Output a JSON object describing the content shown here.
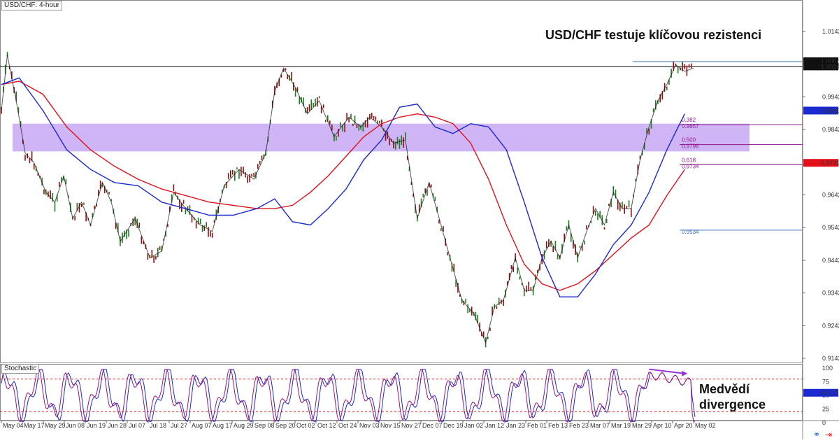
{
  "chart": {
    "instrument_label": "USD/CHF: 4-hour",
    "headline": "USD/CHF testuje klíčovou rezistenci",
    "oscillator_label": "Stochastic",
    "divergence_note": [
      "Medvědí",
      "divergence"
    ]
  },
  "chart_data": [
    {
      "type": "line",
      "title": "USD/CHF testuje klíčovou rezistenci",
      "instrument": "USD/CHF: 4-hour",
      "ylim": [
        0.9142,
        1.0142
      ],
      "y_ticks": [
        "1.0142",
        "0.9942",
        "0.9842",
        "0.9642",
        "0.9542",
        "0.9442",
        "0.9342",
        "0.9242",
        "0.9142"
      ],
      "x_ticks": [
        "May 04",
        "May 17",
        "May 29",
        "Jun 08",
        "Jun 19",
        "Jun 28",
        "Jul 07",
        "Jul 18",
        "Jul 27",
        "Aug 07",
        "Aug 17",
        "Aug 29",
        "Sep 08",
        "Sep 20",
        "Oct 02",
        "Oct 12",
        "Oct 24",
        "Nov 03",
        "Nov 15",
        "Nov 27",
        "Dec 07",
        "Dec 19",
        "Jan 02",
        "Jan 12",
        "Jan 23",
        "Feb 01",
        "Feb 13",
        "Feb 23",
        "Mar 07",
        "Mar 19",
        "Mar 29",
        "Apr 10",
        "Apr 20",
        "May 02"
      ],
      "price_series_x": [
        0,
        2,
        5,
        8,
        11,
        15,
        18,
        21,
        24,
        27,
        30,
        34,
        37,
        40,
        45,
        50,
        54,
        58,
        62,
        67,
        71,
        75,
        80,
        85,
        89,
        92,
        95,
        99,
        103,
        107,
        112,
        117,
        121,
        124,
        128,
        132,
        136,
        140,
        144,
        148,
        151,
        155,
        159,
        163,
        166,
        169,
        173,
        176,
        179,
        182,
        185,
        188,
        191,
        194,
        197,
        200,
        203,
        206,
        209,
        212,
        215,
        218,
        221,
        224,
        227,
        230,
        233
      ],
      "price_series_y": [
        0.99,
        1.007,
        0.993,
        0.977,
        0.974,
        0.965,
        0.962,
        0.97,
        0.957,
        0.962,
        0.955,
        0.968,
        0.962,
        0.95,
        0.957,
        0.945,
        0.947,
        0.965,
        0.96,
        0.955,
        0.953,
        0.967,
        0.972,
        0.969,
        0.977,
        0.996,
        1.003,
        0.997,
        0.989,
        0.993,
        0.982,
        0.988,
        0.985,
        0.988,
        0.985,
        0.98,
        0.981,
        0.957,
        0.968,
        0.955,
        0.945,
        0.932,
        0.928,
        0.919,
        0.93,
        0.932,
        0.945,
        0.935,
        0.935,
        0.945,
        0.95,
        0.945,
        0.955,
        0.945,
        0.953,
        0.96,
        0.955,
        0.965,
        0.96,
        0.96,
        0.975,
        0.985,
        0.993,
        0.998,
        1.004,
        1.002,
        1.003
      ],
      "ma_fast": [
        0.998,
        1.0,
        0.99,
        0.978,
        0.972,
        0.968,
        0.967,
        0.962,
        0.96,
        0.958,
        0.958,
        0.96,
        0.963,
        0.956,
        0.955,
        0.96,
        0.966,
        0.975,
        0.981,
        0.991,
        0.992,
        0.985,
        0.983,
        0.986,
        0.985,
        0.978,
        0.962,
        0.945,
        0.933,
        0.933,
        0.94,
        0.949,
        0.955,
        0.965,
        0.978,
        0.989
      ],
      "ma_fast_x": [
        0,
        6,
        14,
        22,
        30,
        38,
        46,
        54,
        62,
        70,
        78,
        86,
        92,
        98,
        104,
        110,
        116,
        122,
        128,
        134,
        140,
        146,
        152,
        158,
        164,
        170,
        176,
        182,
        188,
        194,
        200,
        206,
        212,
        218,
        224,
        230
      ],
      "ma_slow": [
        0.998,
        0.999,
        0.995,
        0.985,
        0.978,
        0.973,
        0.969,
        0.966,
        0.964,
        0.962,
        0.961,
        0.96,
        0.96,
        0.961,
        0.965,
        0.97,
        0.976,
        0.982,
        0.986,
        0.988,
        0.989,
        0.988,
        0.986,
        0.98,
        0.969,
        0.955,
        0.943,
        0.937,
        0.935,
        0.937,
        0.941,
        0.946,
        0.951,
        0.955,
        0.964,
        0.972
      ],
      "ma_slow_x": [
        0,
        6,
        14,
        22,
        30,
        38,
        46,
        54,
        62,
        70,
        78,
        86,
        92,
        98,
        104,
        110,
        116,
        122,
        128,
        134,
        140,
        146,
        152,
        158,
        164,
        170,
        176,
        182,
        188,
        194,
        200,
        206,
        212,
        218,
        224,
        230
      ],
      "current_price": "1.0034",
      "price_markers": [
        {
          "label": "1.0050",
          "value": 1.005,
          "color": "#111111"
        },
        {
          "label": "1.0034",
          "value": 1.0034,
          "color": "#111111"
        },
        {
          "label": "0.9899",
          "value": 0.9899,
          "color": "#1a2ad0"
        },
        {
          "label": "0.9739",
          "value": 0.9739,
          "color": "#e3101a"
        }
      ],
      "fib_levels": [
        {
          "ratio": "0.382",
          "price": "0.9857",
          "value": 0.9857,
          "color": "#8b1a8b"
        },
        {
          "ratio": "0.500",
          "price": "0.9796",
          "value": 0.9796,
          "color": "#8b1a8b"
        },
        {
          "ratio": "0.618",
          "price": "0.9734",
          "value": 0.9734,
          "color": "#8b1a8b"
        },
        {
          "ratio": "",
          "price": "0.9534",
          "value": 0.9534,
          "color": "#3a6fb0"
        }
      ],
      "resistance_zone": [
        0.9775,
        0.986
      ],
      "resistance_color": "#c8a8f5",
      "colors": {
        "price": "#111111",
        "ma_fast": "#1a2ad0",
        "ma_slow": "#e3101a",
        "grid_border": "#888888"
      }
    },
    {
      "type": "line",
      "title": "Stochastic",
      "ylim": [
        0,
        100
      ],
      "y_ticks": [
        "100",
        "75",
        "50",
        "25",
        "0"
      ],
      "current_value": "54.17",
      "levels": [
        80,
        20
      ],
      "divergence_line": [
        [
          218,
          98
        ],
        [
          230,
          90
        ]
      ],
      "colors": {
        "k": "#1a2ad0",
        "d": "#a01080",
        "divergence": "#9b30d9"
      }
    }
  ]
}
